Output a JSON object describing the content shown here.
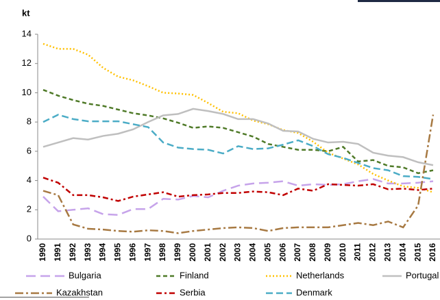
{
  "chart_data": {
    "type": "line",
    "y_label": "kt",
    "categories": [
      "1990",
      "1991",
      "1992",
      "1993",
      "1994",
      "1995",
      "1996",
      "1997",
      "1998",
      "1999",
      "2000",
      "2001",
      "2002",
      "2003",
      "2004",
      "2005",
      "2006",
      "2007",
      "2008",
      "2009",
      "2010",
      "2011",
      "2012",
      "2013",
      "2014",
      "2015",
      "2016"
    ],
    "ylim": [
      0,
      14
    ],
    "yticks": [
      0,
      2,
      4,
      6,
      8,
      10,
      12,
      14
    ],
    "series": [
      {
        "name": "Bulgaria",
        "color": "#c6a3ea",
        "values": [
          2.9,
          1.9,
          2.0,
          2.1,
          1.7,
          1.65,
          2.05,
          2.05,
          2.75,
          2.7,
          2.95,
          2.85,
          3.3,
          3.65,
          3.8,
          3.85,
          3.95,
          3.65,
          3.75,
          3.7,
          3.75,
          3.95,
          4.1,
          3.8,
          3.8,
          3.85,
          3.95
        ]
      },
      {
        "name": "Finland",
        "color": "#4f7a28",
        "values": [
          10.2,
          9.8,
          9.5,
          9.25,
          9.1,
          8.85,
          8.6,
          8.45,
          8.25,
          7.95,
          7.6,
          7.7,
          7.6,
          7.3,
          7.0,
          6.5,
          6.3,
          6.1,
          6.1,
          6.0,
          6.3,
          5.3,
          5.4,
          5.0,
          4.9,
          4.5,
          4.7
        ]
      },
      {
        "name": "Netherlands",
        "color": "#ffc000",
        "values": [
          13.35,
          13.0,
          13.0,
          12.6,
          11.7,
          11.1,
          10.85,
          10.45,
          10.0,
          9.95,
          9.85,
          9.3,
          8.7,
          8.6,
          8.1,
          7.85,
          7.45,
          7.25,
          6.65,
          5.9,
          5.5,
          5.1,
          4.45,
          4.0,
          3.6,
          3.5,
          3.2
        ]
      },
      {
        "name": "Portugal",
        "color": "#bfbfbf",
        "values": [
          6.3,
          6.6,
          6.9,
          6.8,
          7.05,
          7.2,
          7.5,
          8.0,
          8.45,
          8.55,
          8.9,
          8.75,
          8.55,
          8.2,
          8.2,
          7.9,
          7.4,
          7.35,
          6.85,
          6.6,
          6.65,
          6.5,
          5.9,
          5.7,
          5.6,
          5.25,
          5.05
        ]
      },
      {
        "name": "Kazakhstan",
        "color": "#a77942",
        "values": [
          3.3,
          3.0,
          1.0,
          0.7,
          0.65,
          0.55,
          0.5,
          0.6,
          0.55,
          0.4,
          0.55,
          0.65,
          0.75,
          0.8,
          0.75,
          0.55,
          0.75,
          0.8,
          0.8,
          0.8,
          0.95,
          1.1,
          0.95,
          1.2,
          0.8,
          2.3,
          8.5
        ]
      },
      {
        "name": "Serbia",
        "color": "#c00000",
        "values": [
          4.2,
          3.85,
          3.0,
          3.0,
          2.85,
          2.6,
          2.9,
          3.05,
          3.2,
          2.9,
          3.0,
          3.05,
          3.15,
          3.15,
          3.25,
          3.2,
          3.0,
          3.45,
          3.3,
          3.75,
          3.7,
          3.65,
          3.75,
          3.4,
          3.45,
          3.35,
          3.45
        ]
      },
      {
        "name": "Denmark",
        "color": "#4bacc6",
        "values": [
          8.0,
          8.5,
          8.2,
          8.05,
          8.05,
          8.05,
          7.85,
          7.65,
          6.6,
          6.25,
          6.15,
          6.1,
          5.85,
          6.35,
          6.15,
          6.2,
          6.45,
          6.75,
          6.35,
          5.8,
          5.55,
          5.2,
          4.85,
          4.7,
          4.3,
          4.25,
          4.1
        ]
      }
    ]
  }
}
